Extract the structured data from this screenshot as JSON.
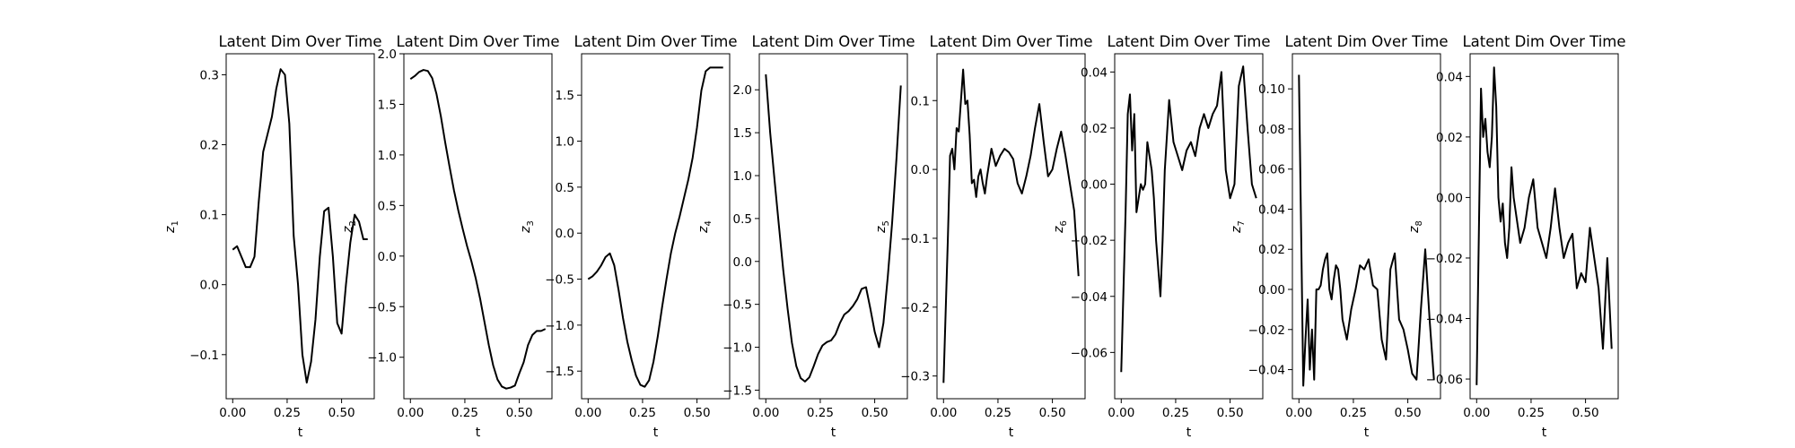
{
  "chart_data": [
    {
      "type": "line",
      "title": "Latent Dim Over Time",
      "xlabel": "t",
      "ylabel": "z",
      "ylabel_sub": "1",
      "xlim": [
        -0.03,
        0.65
      ],
      "ylim": [
        -0.163,
        0.33
      ],
      "xticks": [
        0.0,
        0.25,
        0.5
      ],
      "xtick_labels": [
        "0.00",
        "0.25",
        "0.50"
      ],
      "yticks": [
        -0.1,
        0.0,
        0.1,
        0.2,
        0.3
      ],
      "ytick_labels": [
        "−0.1",
        "0.0",
        "0.1",
        "0.2",
        "0.3"
      ],
      "x": [
        0.0,
        0.02,
        0.04,
        0.06,
        0.08,
        0.1,
        0.12,
        0.14,
        0.16,
        0.18,
        0.2,
        0.22,
        0.24,
        0.26,
        0.28,
        0.3,
        0.32,
        0.34,
        0.36,
        0.38,
        0.4,
        0.42,
        0.44,
        0.46,
        0.48,
        0.5,
        0.52,
        0.54,
        0.56,
        0.58,
        0.6,
        0.62
      ],
      "y": [
        0.05,
        0.055,
        0.04,
        0.025,
        0.025,
        0.04,
        0.12,
        0.19,
        0.215,
        0.24,
        0.28,
        0.308,
        0.3,
        0.23,
        0.07,
        0.0,
        -0.1,
        -0.14,
        -0.11,
        -0.05,
        0.04,
        0.105,
        0.11,
        0.04,
        -0.055,
        -0.07,
        0.0,
        0.06,
        0.1,
        0.09,
        0.065,
        0.065
      ],
      "color": "#000000"
    },
    {
      "type": "line",
      "title": "Latent Dim Over Time",
      "xlabel": "t",
      "ylabel": "z",
      "ylabel_sub": "2",
      "xlim": [
        -0.03,
        0.65
      ],
      "ylim": [
        -1.41,
        2.0
      ],
      "xticks": [
        0.0,
        0.25,
        0.5
      ],
      "xtick_labels": [
        "0.00",
        "0.25",
        "0.50"
      ],
      "yticks": [
        -1.0,
        -0.5,
        0.0,
        0.5,
        1.0,
        1.5,
        2.0
      ],
      "ytick_labels": [
        "−1.0",
        "−0.5",
        "0.0",
        "0.5",
        "1.0",
        "1.5",
        "2.0"
      ],
      "x": [
        0.0,
        0.02,
        0.04,
        0.06,
        0.08,
        0.1,
        0.12,
        0.14,
        0.16,
        0.18,
        0.2,
        0.22,
        0.24,
        0.26,
        0.28,
        0.3,
        0.32,
        0.34,
        0.36,
        0.38,
        0.4,
        0.42,
        0.44,
        0.46,
        0.48,
        0.5,
        0.52,
        0.54,
        0.56,
        0.58,
        0.6,
        0.62
      ],
      "y": [
        1.75,
        1.78,
        1.82,
        1.84,
        1.83,
        1.76,
        1.6,
        1.38,
        1.12,
        0.88,
        0.65,
        0.45,
        0.27,
        0.1,
        -0.05,
        -0.22,
        -0.42,
        -0.65,
        -0.88,
        -1.08,
        -1.22,
        -1.29,
        -1.31,
        -1.3,
        -1.28,
        -1.16,
        -1.05,
        -0.88,
        -0.78,
        -0.74,
        -0.74,
        -0.72
      ],
      "color": "#000000"
    },
    {
      "type": "line",
      "title": "Latent Dim Over Time",
      "xlabel": "t",
      "ylabel": "z",
      "ylabel_sub": "3",
      "xlim": [
        -0.03,
        0.65
      ],
      "ylim": [
        -1.8,
        1.95
      ],
      "xticks": [
        0.0,
        0.25,
        0.5
      ],
      "xtick_labels": [
        "0.00",
        "0.25",
        "0.50"
      ],
      "yticks": [
        -1.5,
        -1.0,
        -0.5,
        0.0,
        0.5,
        1.0,
        1.5
      ],
      "ytick_labels": [
        "−1.5",
        "−1.0",
        "−0.5",
        "0.0",
        "0.5",
        "1.0",
        "1.5"
      ],
      "x": [
        0.0,
        0.02,
        0.04,
        0.06,
        0.08,
        0.1,
        0.12,
        0.14,
        0.16,
        0.18,
        0.2,
        0.22,
        0.24,
        0.26,
        0.28,
        0.3,
        0.32,
        0.34,
        0.36,
        0.38,
        0.4,
        0.42,
        0.44,
        0.46,
        0.48,
        0.5,
        0.52,
        0.54,
        0.56,
        0.58,
        0.6,
        0.62
      ],
      "y": [
        -0.5,
        -0.47,
        -0.42,
        -0.35,
        -0.26,
        -0.22,
        -0.35,
        -0.62,
        -0.92,
        -1.18,
        -1.38,
        -1.55,
        -1.65,
        -1.67,
        -1.6,
        -1.4,
        -1.12,
        -0.8,
        -0.5,
        -0.22,
        0.0,
        0.18,
        0.38,
        0.58,
        0.82,
        1.15,
        1.55,
        1.76,
        1.8,
        1.8,
        1.8,
        1.8
      ],
      "color": "#000000"
    },
    {
      "type": "line",
      "title": "Latent Dim Over Time",
      "xlabel": "t",
      "ylabel": "z",
      "ylabel_sub": "4",
      "xlim": [
        -0.03,
        0.65
      ],
      "ylim": [
        -1.6,
        2.42
      ],
      "xticks": [
        0.0,
        0.25,
        0.5
      ],
      "xtick_labels": [
        "0.00",
        "0.25",
        "0.50"
      ],
      "yticks": [
        -1.5,
        -1.0,
        -0.5,
        0.0,
        0.5,
        1.0,
        1.5,
        2.0
      ],
      "ytick_labels": [
        "−1.5",
        "−1.0",
        "−0.5",
        "0.0",
        "0.5",
        "1.0",
        "1.5",
        "2.0"
      ],
      "x": [
        0.0,
        0.02,
        0.04,
        0.06,
        0.08,
        0.1,
        0.12,
        0.14,
        0.16,
        0.18,
        0.2,
        0.22,
        0.24,
        0.26,
        0.28,
        0.3,
        0.32,
        0.34,
        0.36,
        0.38,
        0.4,
        0.42,
        0.44,
        0.46,
        0.48,
        0.5,
        0.52,
        0.54,
        0.56,
        0.58,
        0.6,
        0.62
      ],
      "y": [
        2.18,
        1.5,
        0.95,
        0.42,
        -0.1,
        -0.55,
        -0.95,
        -1.22,
        -1.36,
        -1.4,
        -1.35,
        -1.22,
        -1.08,
        -0.98,
        -0.94,
        -0.92,
        -0.85,
        -0.72,
        -0.62,
        -0.58,
        -0.52,
        -0.44,
        -0.32,
        -0.3,
        -0.55,
        -0.82,
        -1.0,
        -0.72,
        -0.18,
        0.45,
        1.2,
        2.05
      ],
      "color": "#000000"
    },
    {
      "type": "line",
      "title": "Latent Dim Over Time",
      "xlabel": "t",
      "ylabel": "z",
      "ylabel_sub": "5",
      "xlim": [
        -0.03,
        0.65
      ],
      "ylim": [
        -0.333,
        0.168
      ],
      "xticks": [
        0.0,
        0.25,
        0.5
      ],
      "xtick_labels": [
        "0.00",
        "0.25",
        "0.50"
      ],
      "yticks": [
        -0.3,
        -0.2,
        -0.1,
        0.0,
        0.1
      ],
      "ytick_labels": [
        "−0.3",
        "−0.2",
        "−0.1",
        "0.0",
        "0.1"
      ],
      "x": [
        0.0,
        0.02,
        0.03,
        0.04,
        0.05,
        0.06,
        0.07,
        0.08,
        0.09,
        0.1,
        0.11,
        0.12,
        0.13,
        0.14,
        0.15,
        0.16,
        0.17,
        0.18,
        0.19,
        0.2,
        0.22,
        0.24,
        0.26,
        0.28,
        0.3,
        0.32,
        0.34,
        0.36,
        0.38,
        0.4,
        0.42,
        0.44,
        0.46,
        0.48,
        0.5,
        0.52,
        0.54,
        0.56,
        0.58,
        0.6,
        0.62
      ],
      "y": [
        -0.31,
        -0.1,
        0.02,
        0.03,
        0.0,
        0.06,
        0.055,
        0.1,
        0.145,
        0.095,
        0.1,
        0.05,
        -0.02,
        -0.015,
        -0.04,
        -0.01,
        0.0,
        -0.02,
        -0.035,
        -0.01,
        0.03,
        0.005,
        0.02,
        0.03,
        0.025,
        0.015,
        -0.02,
        -0.035,
        -0.01,
        0.02,
        0.06,
        0.095,
        0.04,
        -0.01,
        0.0,
        0.03,
        0.055,
        0.02,
        -0.02,
        -0.06,
        -0.155
      ],
      "color": "#000000"
    },
    {
      "type": "line",
      "title": "Latent Dim Over Time",
      "xlabel": "t",
      "ylabel": "z",
      "ylabel_sub": "6",
      "xlim": [
        -0.03,
        0.65
      ],
      "ylim": [
        -0.0765,
        0.0465
      ],
      "xticks": [
        0.0,
        0.25,
        0.5
      ],
      "xtick_labels": [
        "0.00",
        "0.25",
        "0.50"
      ],
      "yticks": [
        -0.06,
        -0.04,
        -0.02,
        0.0,
        0.02,
        0.04
      ],
      "ytick_labels": [
        "−0.06",
        "−0.04",
        "−0.02",
        "0.00",
        "0.02",
        "0.04"
      ],
      "x": [
        0.0,
        0.02,
        0.03,
        0.04,
        0.05,
        0.06,
        0.07,
        0.08,
        0.09,
        0.1,
        0.11,
        0.12,
        0.13,
        0.14,
        0.15,
        0.16,
        0.17,
        0.18,
        0.19,
        0.2,
        0.22,
        0.24,
        0.26,
        0.28,
        0.3,
        0.32,
        0.34,
        0.36,
        0.38,
        0.4,
        0.42,
        0.44,
        0.46,
        0.48,
        0.5,
        0.52,
        0.54,
        0.56,
        0.58,
        0.6,
        0.62
      ],
      "y": [
        -0.067,
        -0.01,
        0.025,
        0.032,
        0.012,
        0.025,
        -0.01,
        -0.005,
        0.0,
        -0.002,
        0.0,
        0.015,
        0.01,
        0.005,
        -0.005,
        -0.02,
        -0.03,
        -0.04,
        -0.02,
        0.005,
        0.03,
        0.015,
        0.01,
        0.005,
        0.012,
        0.015,
        0.01,
        0.02,
        0.025,
        0.02,
        0.025,
        0.028,
        0.04,
        0.005,
        -0.005,
        0.0,
        0.035,
        0.042,
        0.02,
        0.0,
        -0.005
      ],
      "color": "#000000"
    },
    {
      "type": "line",
      "title": "Latent Dim Over Time",
      "xlabel": "t",
      "ylabel": "z",
      "ylabel_sub": "7",
      "xlim": [
        -0.03,
        0.65
      ],
      "ylim": [
        -0.0545,
        0.1175
      ],
      "xticks": [
        0.0,
        0.25,
        0.5
      ],
      "xtick_labels": [
        "0.00",
        "0.25",
        "0.50"
      ],
      "yticks": [
        -0.04,
        -0.02,
        0.0,
        0.02,
        0.04,
        0.06,
        0.08,
        0.1
      ],
      "ytick_labels": [
        "−0.04",
        "−0.02",
        "0.00",
        "0.02",
        "0.04",
        "0.06",
        "0.08",
        "0.10"
      ],
      "x": [
        0.0,
        0.02,
        0.03,
        0.04,
        0.05,
        0.06,
        0.07,
        0.08,
        0.09,
        0.1,
        0.11,
        0.12,
        0.13,
        0.14,
        0.15,
        0.16,
        0.17,
        0.18,
        0.19,
        0.2,
        0.22,
        0.24,
        0.26,
        0.28,
        0.3,
        0.32,
        0.34,
        0.36,
        0.38,
        0.4,
        0.42,
        0.44,
        0.46,
        0.48,
        0.5,
        0.52,
        0.54,
        0.56,
        0.58,
        0.6,
        0.62
      ],
      "y": [
        0.107,
        -0.048,
        -0.025,
        -0.005,
        -0.04,
        -0.02,
        -0.045,
        0.0,
        0.0,
        0.002,
        0.01,
        0.015,
        0.018,
        0.0,
        -0.005,
        0.005,
        0.012,
        0.01,
        0.0,
        -0.015,
        -0.025,
        -0.01,
        0.0,
        0.012,
        0.01,
        0.015,
        0.002,
        0.0,
        -0.025,
        -0.035,
        0.01,
        0.018,
        -0.015,
        -0.02,
        -0.03,
        -0.042,
        -0.045,
        -0.01,
        0.02,
        -0.015,
        -0.045
      ],
      "color": "#000000"
    },
    {
      "type": "line",
      "title": "Latent Dim Over Time",
      "xlabel": "t",
      "ylabel": "z",
      "ylabel_sub": "8",
      "xlim": [
        -0.03,
        0.65
      ],
      "ylim": [
        -0.0665,
        0.0475
      ],
      "xticks": [
        0.0,
        0.25,
        0.5
      ],
      "xtick_labels": [
        "0.00",
        "0.25",
        "0.50"
      ],
      "yticks": [
        -0.06,
        -0.04,
        -0.02,
        0.0,
        0.02,
        0.04
      ],
      "ytick_labels": [
        "−0.06",
        "−0.04",
        "−0.02",
        "0.00",
        "0.02",
        "0.04"
      ],
      "x": [
        0.0,
        0.02,
        0.03,
        0.04,
        0.05,
        0.06,
        0.07,
        0.08,
        0.09,
        0.1,
        0.11,
        0.12,
        0.13,
        0.14,
        0.15,
        0.16,
        0.17,
        0.18,
        0.19,
        0.2,
        0.22,
        0.24,
        0.26,
        0.28,
        0.3,
        0.32,
        0.34,
        0.36,
        0.38,
        0.4,
        0.42,
        0.44,
        0.46,
        0.48,
        0.5,
        0.52,
        0.54,
        0.56,
        0.58,
        0.6,
        0.62
      ],
      "y": [
        -0.062,
        0.036,
        0.02,
        0.026,
        0.015,
        0.01,
        0.02,
        0.043,
        0.03,
        0.0,
        -0.008,
        -0.002,
        -0.015,
        -0.02,
        -0.01,
        0.01,
        0.0,
        -0.005,
        -0.01,
        -0.015,
        -0.01,
        0.0,
        0.006,
        -0.01,
        -0.015,
        -0.02,
        -0.01,
        0.003,
        -0.01,
        -0.02,
        -0.015,
        -0.012,
        -0.03,
        -0.025,
        -0.028,
        -0.01,
        -0.02,
        -0.03,
        -0.05,
        -0.02,
        -0.05
      ],
      "color": "#000000"
    }
  ]
}
